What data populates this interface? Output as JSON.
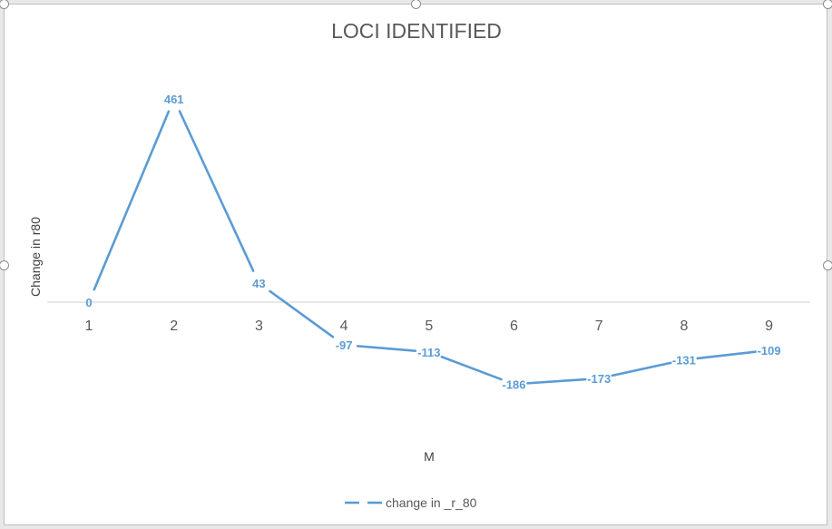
{
  "chart_data": {
    "type": "line",
    "title": "LOCI IDENTIFIED",
    "xlabel": "M",
    "ylabel": "Change in r80",
    "categories": [
      "1",
      "2",
      "3",
      "4",
      "5",
      "6",
      "7",
      "8",
      "9"
    ],
    "series": [
      {
        "name": "change in _r_80",
        "values": [
          0,
          461,
          43,
          -97,
          -113,
          -186,
          -173,
          -131,
          -109
        ],
        "color": "#5b9bd5"
      }
    ],
    "ylim": [
      -300,
      500
    ],
    "grid": false,
    "legend_position": "bottom",
    "data_labels": true
  }
}
